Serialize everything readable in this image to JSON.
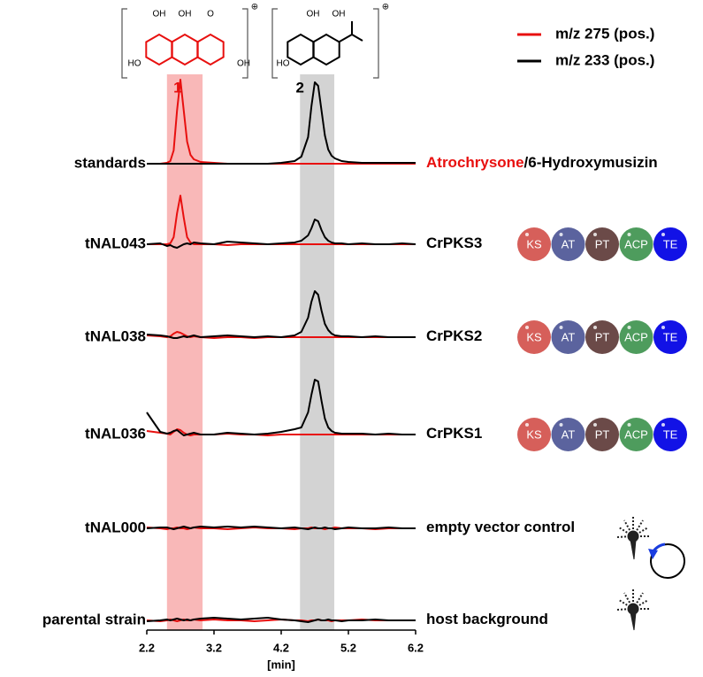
{
  "chart_data": {
    "type": "line",
    "xlabel": "[min]",
    "xlim": [
      2.2,
      6.2
    ],
    "xticks": [
      2.2,
      3.2,
      4.2,
      5.2,
      6.2
    ],
    "ylim": [
      0,
      100
    ],
    "x": [
      2.2,
      2.4,
      2.5,
      2.55,
      2.6,
      2.65,
      2.7,
      2.75,
      2.8,
      2.85,
      2.9,
      3.0,
      3.2,
      3.4,
      3.6,
      3.8,
      4.0,
      4.2,
      4.4,
      4.5,
      4.6,
      4.65,
      4.7,
      4.75,
      4.8,
      4.85,
      4.9,
      4.95,
      5.0,
      5.1,
      5.2,
      5.4,
      5.6,
      5.8,
      6.0,
      6.2
    ],
    "legend": [
      {
        "name": "m/z 275 (pos.)",
        "color": "#e8100f"
      },
      {
        "name": "m/z 233 (pos.)",
        "color": "#000000"
      }
    ],
    "highlights": [
      {
        "label": "1",
        "range": [
          2.5,
          3.03
        ],
        "color": "#f9b8b8",
        "label_color": "#e8100f"
      },
      {
        "label": "2",
        "range": [
          4.48,
          4.99
        ],
        "color": "#d3d3d3",
        "label_color": "#000000"
      }
    ],
    "structures": [
      {
        "color": "#e8100f",
        "labels": [
          "OH",
          "OH",
          "O",
          "HO",
          "OH"
        ],
        "charge": "⊕"
      },
      {
        "color": "#000000",
        "labels": [
          "OH",
          "OH",
          "HO"
        ],
        "charge": "⊕"
      }
    ],
    "tracks": [
      {
        "label": "standards",
        "description": [
          {
            "text": "Atrochrysone",
            "color": "#e8100f"
          },
          {
            "text": "/6-Hydroxymusizin",
            "color": "#000000"
          }
        ],
        "series": [
          {
            "color": "#e8100f",
            "values": [
              0,
              0,
              1,
              3,
              15,
              60,
              95,
              60,
              25,
              10,
              5,
              2,
              1,
              0,
              0,
              0,
              0,
              0,
              0,
              0,
              0,
              0,
              0,
              0,
              0,
              0,
              0,
              0,
              0,
              0,
              0,
              0,
              0,
              0,
              0,
              0
            ]
          },
          {
            "color": "#000000",
            "values": [
              0,
              0,
              0,
              0,
              0,
              0,
              0,
              0,
              0,
              0,
              0,
              0,
              0,
              0,
              0,
              0,
              0,
              1,
              3,
              8,
              30,
              65,
              92,
              88,
              60,
              32,
              16,
              9,
              6,
              3,
              2,
              1,
              1,
              1,
              1,
              1
            ]
          }
        ]
      },
      {
        "label": "tNAL043",
        "description": [
          {
            "text": "CrPKS3",
            "color": "#000000"
          }
        ],
        "domains": [
          "KS",
          "AT",
          "PT",
          "ACP",
          "TE"
        ],
        "series": [
          {
            "color": "#e8100f",
            "values": [
              0,
              0,
              0,
              1,
              8,
              35,
              55,
              30,
              8,
              2,
              0,
              0,
              0,
              -1,
              0,
              0,
              0,
              0,
              0,
              0,
              0,
              0,
              0,
              0,
              0,
              0,
              0,
              0,
              0,
              0,
              0,
              0,
              0,
              0,
              0,
              0
            ]
          },
          {
            "color": "#000000",
            "values": [
              0,
              1,
              -2,
              -1,
              -3,
              -4,
              -2,
              0,
              1,
              0,
              2,
              1,
              0,
              3,
              2,
              1,
              0,
              1,
              2,
              4,
              10,
              18,
              28,
              26,
              16,
              8,
              4,
              2,
              1,
              1,
              0,
              1,
              0,
              0,
              1,
              0
            ]
          }
        ]
      },
      {
        "label": "tNAL038",
        "description": [
          {
            "text": "CrPKS2",
            "color": "#000000"
          }
        ],
        "domains": [
          "KS",
          "AT",
          "PT",
          "ACP",
          "TE"
        ],
        "series": [
          {
            "color": "#e8100f",
            "values": [
              2,
              1,
              0,
              1,
              4,
              6,
              5,
              3,
              1,
              0,
              1,
              0,
              -1,
              0,
              0,
              -1,
              0,
              0,
              0,
              0,
              0,
              0,
              0,
              0,
              0,
              0,
              0,
              0,
              0,
              0,
              0,
              0,
              0,
              0,
              0,
              0
            ]
          },
          {
            "color": "#000000",
            "values": [
              3,
              2,
              1,
              0,
              -1,
              -1,
              0,
              1,
              0,
              1,
              2,
              0,
              1,
              2,
              1,
              0,
              1,
              0,
              2,
              6,
              22,
              40,
              52,
              48,
              30,
              15,
              8,
              4,
              2,
              1,
              1,
              0,
              1,
              0,
              0,
              0
            ]
          }
        ]
      },
      {
        "label": "tNAL036",
        "description": [
          {
            "text": "CrPKS1",
            "color": "#000000"
          }
        ],
        "domains": [
          "KS",
          "AT",
          "PT",
          "ACP",
          "TE"
        ],
        "series": [
          {
            "color": "#e8100f",
            "values": [
              4,
              2,
              1,
              0,
              3,
              6,
              5,
              2,
              0,
              -1,
              0,
              0,
              0,
              1,
              0,
              0,
              -1,
              0,
              0,
              0,
              0,
              0,
              0,
              0,
              0,
              0,
              0,
              0,
              0,
              0,
              0,
              0,
              0,
              0,
              0,
              0
            ]
          },
          {
            "color": "#000000",
            "values": [
              25,
              3,
              1,
              2,
              4,
              5,
              2,
              -1,
              0,
              1,
              2,
              0,
              0,
              2,
              1,
              0,
              1,
              3,
              6,
              8,
              25,
              45,
              62,
              60,
              38,
              18,
              8,
              4,
              2,
              1,
              1,
              1,
              0,
              1,
              0,
              0
            ]
          }
        ]
      },
      {
        "label": "tNAL000",
        "description": [
          {
            "text": "empty vector control",
            "color": "#000000"
          }
        ],
        "series": [
          {
            "color": "#e8100f",
            "values": [
              1,
              0,
              -1,
              0,
              0,
              1,
              0,
              0,
              -1,
              0,
              1,
              0,
              0,
              -1,
              0,
              1,
              0,
              0,
              -1,
              0,
              0,
              1,
              0,
              0,
              0,
              -1,
              0,
              0,
              1,
              0,
              0,
              0,
              -1,
              0,
              0,
              0
            ]
          },
          {
            "color": "#000000",
            "values": [
              0,
              1,
              1,
              0,
              -1,
              0,
              1,
              2,
              1,
              0,
              1,
              2,
              1,
              2,
              1,
              2,
              1,
              0,
              1,
              0,
              -1,
              0,
              1,
              0,
              0,
              1,
              0,
              0,
              -1,
              0,
              1,
              0,
              0,
              1,
              0,
              0
            ]
          }
        ]
      },
      {
        "label": "parental strain",
        "description": [
          {
            "text": "host background",
            "color": "#000000"
          }
        ],
        "series": [
          {
            "color": "#e8100f",
            "values": [
              0,
              -1,
              0,
              1,
              0,
              -1,
              0,
              1,
              0,
              0,
              1,
              0,
              1,
              0,
              0,
              -1,
              0,
              1,
              0,
              0,
              -1,
              0,
              0,
              1,
              0,
              0,
              0,
              -1,
              0,
              0,
              0,
              1,
              0,
              0,
              0,
              0
            ]
          },
          {
            "color": "#000000",
            "values": [
              -1,
              0,
              1,
              0,
              1,
              2,
              1,
              0,
              1,
              0,
              1,
              2,
              3,
              2,
              1,
              2,
              3,
              1,
              0,
              -1,
              -2,
              -1,
              0,
              1,
              0,
              0,
              1,
              0,
              0,
              -1,
              0,
              0,
              1,
              0,
              0,
              0
            ]
          }
        ]
      }
    ],
    "domain_colors": {
      "KS": "#d65f5a",
      "AT": "#5b639e",
      "PT": "#6b4a48",
      "ACP": "#4e9c5d",
      "TE": "#1212e6"
    }
  }
}
